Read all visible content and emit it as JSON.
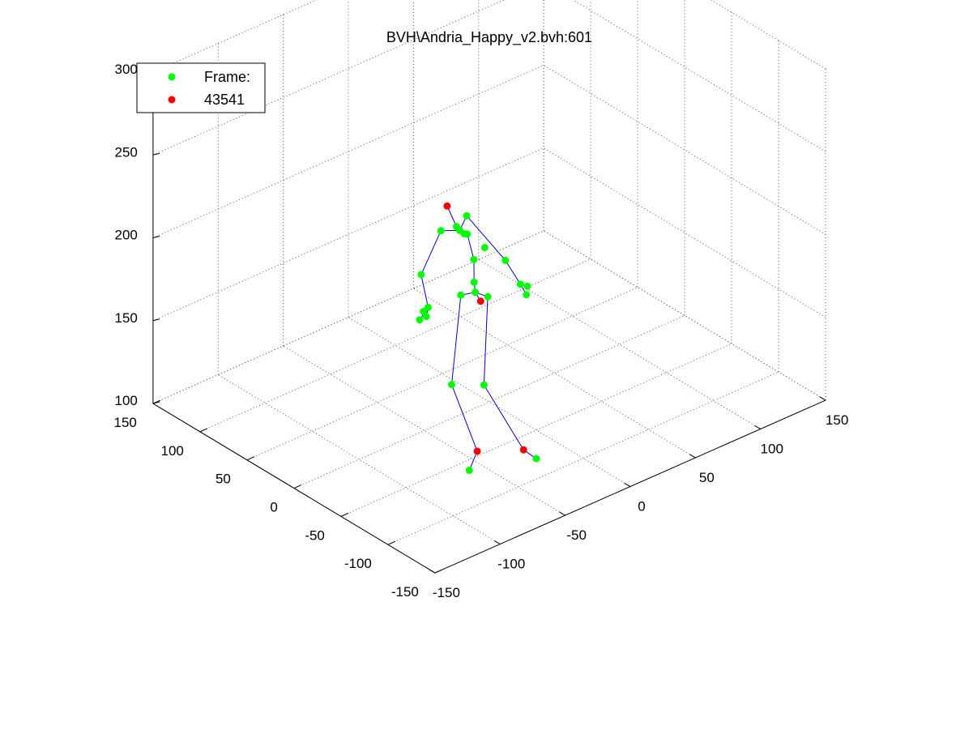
{
  "chart_data": {
    "type": "scatter3d",
    "title": "BVH\\Andria_Happy_v2.bvh:601",
    "legend": {
      "placement": "top-left",
      "entries": [
        {
          "label": "Frame:",
          "color": "#00ff00"
        },
        {
          "label": "43541",
          "color": "#ff0000"
        }
      ]
    },
    "grid": true,
    "axes": {
      "x": {
        "range": [
          -150,
          150
        ],
        "ticks": [
          -150,
          -100,
          -50,
          0,
          50,
          100,
          150
        ]
      },
      "y": {
        "range": [
          -150,
          150
        ],
        "ticks": [
          -150,
          -100,
          -50,
          0,
          50,
          100,
          150
        ]
      },
      "z": {
        "range": [
          100,
          300
        ],
        "ticks": [
          100,
          150,
          200,
          250,
          300
        ]
      }
    },
    "colors": {
      "joint": "#00ff00",
      "end_site": "#ff0000",
      "bone": "#0000cd",
      "grid": "#555555"
    },
    "joints": [
      {
        "id": "head_top",
        "kind": "end",
        "x": -5,
        "y": 38,
        "z": 207
      },
      {
        "id": "head",
        "kind": "joint",
        "x": -5,
        "y": 28,
        "z": 198
      },
      {
        "id": "neck",
        "kind": "joint",
        "x": -4,
        "y": 26,
        "z": 196
      },
      {
        "id": "neck2",
        "kind": "joint",
        "x": -2,
        "y": 24,
        "z": 194
      },
      {
        "id": "r_collar",
        "kind": "joint",
        "x": 5,
        "y": 31,
        "z": 200
      },
      {
        "id": "r_shoulder",
        "kind": "joint",
        "x": -4,
        "y": 46,
        "z": 189
      },
      {
        "id": "r_elbow",
        "kind": "joint",
        "x": -17,
        "y": 49,
        "z": 166
      },
      {
        "id": "r_wrist",
        "kind": "joint",
        "x": -21,
        "y": 36,
        "z": 152
      },
      {
        "id": "r_hand_1",
        "kind": "joint",
        "x": -26,
        "y": 34,
        "z": 152
      },
      {
        "id": "r_hand_2",
        "kind": "joint",
        "x": -29,
        "y": 34,
        "z": 148
      },
      {
        "id": "r_hand_3",
        "kind": "joint",
        "x": -26,
        "y": 31,
        "z": 150
      },
      {
        "id": "l_shoulder",
        "kind": "joint",
        "x": 3,
        "y": 9,
        "z": 189
      },
      {
        "id": "l_elbow",
        "kind": "joint",
        "x": 21,
        "y": 12,
        "z": 174
      },
      {
        "id": "l_wrist",
        "kind": "joint",
        "x": 26,
        "y": 3,
        "z": 161
      },
      {
        "id": "l_hand_1",
        "kind": "joint",
        "x": 27,
        "y": -2,
        "z": 156
      },
      {
        "id": "l_hand_2",
        "kind": "joint",
        "x": 30,
        "y": 1,
        "z": 159
      },
      {
        "id": "spine2",
        "kind": "joint",
        "x": 4,
        "y": 29,
        "z": 190
      },
      {
        "id": "spine1",
        "kind": "joint",
        "x": 4,
        "y": 22,
        "z": 177
      },
      {
        "id": "spine",
        "kind": "joint",
        "x": 2,
        "y": 19,
        "z": 165
      },
      {
        "id": "hips",
        "kind": "joint",
        "x": 0,
        "y": 15,
        "z": 161
      },
      {
        "id": "hips_end",
        "kind": "end",
        "x": 2,
        "y": 12,
        "z": 156
      },
      {
        "id": "r_hip",
        "kind": "joint",
        "x": 6,
        "y": 10,
        "z": 158
      },
      {
        "id": "l_hip",
        "kind": "joint",
        "x": -6,
        "y": 22,
        "z": 159
      },
      {
        "id": "r_knee",
        "kind": "joint",
        "x": -7,
        "y": -4,
        "z": 114
      },
      {
        "id": "l_knee",
        "kind": "joint",
        "x": -21,
        "y": 11,
        "z": 114
      },
      {
        "id": "r_ankle",
        "kind": "end",
        "x": 14,
        "y": -17,
        "z": 72
      },
      {
        "id": "l_ankle",
        "kind": "end",
        "x": -10,
        "y": -1,
        "z": 74
      },
      {
        "id": "r_toe",
        "kind": "joint",
        "x": 18,
        "y": -25,
        "z": 68
      },
      {
        "id": "l_toe",
        "kind": "joint",
        "x": -19,
        "y": -5,
        "z": 67
      }
    ],
    "bones": [
      [
        "head_top",
        "head"
      ],
      [
        "head",
        "neck"
      ],
      [
        "neck",
        "neck2"
      ],
      [
        "neck",
        "r_collar"
      ],
      [
        "r_collar",
        "l_elbow"
      ],
      [
        "l_elbow",
        "l_wrist"
      ],
      [
        "l_wrist",
        "l_hand_1"
      ],
      [
        "l_wrist",
        "l_hand_2"
      ],
      [
        "neck2",
        "spine2"
      ],
      [
        "spine2",
        "spine1"
      ],
      [
        "spine1",
        "spine"
      ],
      [
        "spine",
        "hips"
      ],
      [
        "neck",
        "r_shoulder"
      ],
      [
        "r_shoulder",
        "r_elbow"
      ],
      [
        "r_elbow",
        "r_wrist"
      ],
      [
        "r_wrist",
        "r_hand_1"
      ],
      [
        "r_wrist",
        "r_hand_2"
      ],
      [
        "r_wrist",
        "r_hand_3"
      ],
      [
        "hips",
        "hips_end"
      ],
      [
        "hips",
        "r_hip"
      ],
      [
        "hips",
        "l_hip"
      ],
      [
        "r_hip",
        "r_knee"
      ],
      [
        "r_knee",
        "r_ankle"
      ],
      [
        "r_ankle",
        "r_toe"
      ],
      [
        "l_hip",
        "l_knee"
      ],
      [
        "l_knee",
        "l_ankle"
      ],
      [
        "l_ankle",
        "l_toe"
      ]
    ]
  }
}
